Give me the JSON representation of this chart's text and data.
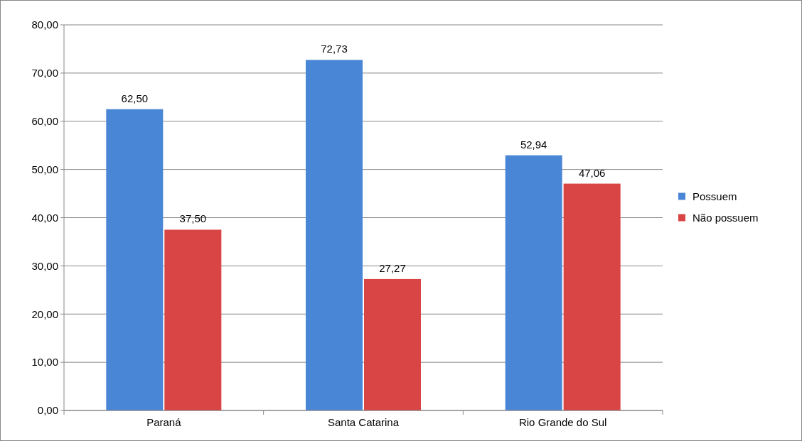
{
  "chart_data": {
    "type": "bar",
    "categories": [
      "Paraná",
      "Santa Catarina",
      "Rio Grande do Sul"
    ],
    "series": [
      {
        "name": "Possuem",
        "color": "#4a86d6",
        "values": [
          62.5,
          72.73,
          52.94
        ],
        "value_labels": [
          "62,50",
          "72,73",
          "52,94"
        ]
      },
      {
        "name": "Não possuem",
        "color": "#d94444",
        "values": [
          37.5,
          27.27,
          47.06
        ],
        "value_labels": [
          "37,50",
          "27,27",
          "47,06"
        ]
      }
    ],
    "ylim": [
      0,
      80
    ],
    "yticks": [
      {
        "value": 0,
        "label": "0,00"
      },
      {
        "value": 10,
        "label": "10,00"
      },
      {
        "value": 20,
        "label": "20,00"
      },
      {
        "value": 30,
        "label": "30,00"
      },
      {
        "value": 40,
        "label": "40,00"
      },
      {
        "value": 50,
        "label": "50,00"
      },
      {
        "value": 60,
        "label": "60,00"
      },
      {
        "value": 70,
        "label": "70,00"
      },
      {
        "value": 80,
        "label": "80,00"
      }
    ],
    "grid": "y",
    "legend": "right"
  }
}
